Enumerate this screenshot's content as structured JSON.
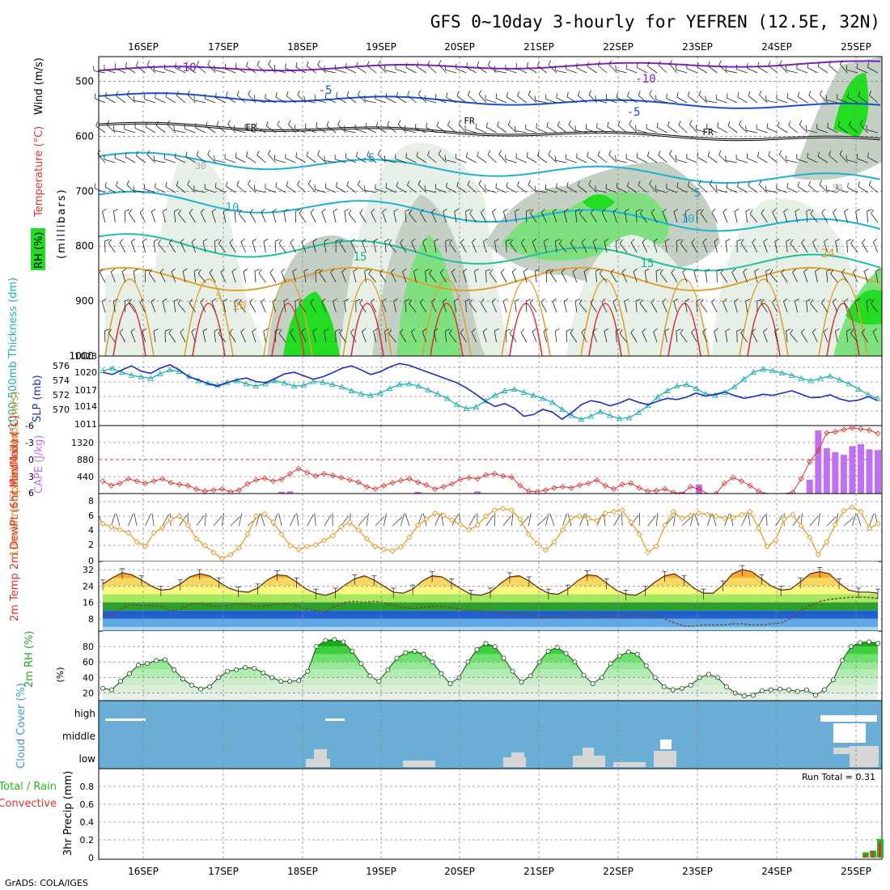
{
  "title": "GFS 0~10day 3-hourly for YEFREN (12.5E, 32N)",
  "credit": "GrADS: COLA/IGES",
  "date_ticks": [
    "16SEP",
    "17SEP",
    "18SEP",
    "19SEP",
    "20SEP",
    "21SEP",
    "22SEP",
    "23SEP",
    "24SEP",
    "25SEP"
  ],
  "colors": {
    "rh_green": "#22dd22",
    "rh_light": "#e6f0e6",
    "rh_grey": "#c4d0c4",
    "temp_orange": "#e0a030",
    "temp_red": "#e03030",
    "iso_blue": "#1a4fd0",
    "iso_cyan": "#1ab0d8",
    "iso_purple": "#8020c0",
    "thickness": "#20b0b0",
    "slp": "#1a30c0",
    "lifted": "#e03030",
    "cape": "#c070f0",
    "wind": "#e09a20",
    "cloud_bg": "#6aaed6"
  },
  "chart_data": [
    {
      "id": "upper",
      "type": "heatmap",
      "ylabel_parts": [
        "RH (%)",
        "Temperature (°C)",
        "Wind (m/s)"
      ],
      "ylabel_units": "(millibars)",
      "y_ticks": [
        "500",
        "600",
        "700",
        "800",
        "900",
        "1000"
      ],
      "isotherm_labels": [
        "-10",
        "-10",
        "-5",
        "-5",
        "FR",
        "FR",
        "FR",
        "-5",
        "5",
        "10",
        "10",
        "15",
        "15",
        "20",
        "24",
        "5",
        "30",
        "30",
        "50"
      ]
    },
    {
      "id": "thickness_slp",
      "type": "line",
      "ylabel_left": "1000-500mb Thickness (dm)",
      "ylabel_right": "SLP (mb)",
      "left_ticks": [
        "576",
        "574",
        "572",
        "570"
      ],
      "right_ticks": [
        "1023",
        "1020",
        "1017",
        "1014",
        "1011"
      ],
      "series": [
        {
          "name": "SLP (mb)",
          "values": [
            1020.2,
            1019.8,
            1020.6,
            1021.3,
            1020.4,
            1020.0,
            1020.9,
            1021.5,
            1020.6,
            1019.4,
            1018.9,
            1018.2,
            1017.8,
            1018.4,
            1018.9,
            1019.2,
            1018.6,
            1018.4,
            1019.1,
            1019.9,
            1020.2,
            1019.6,
            1019.0,
            1019.4,
            1020.1,
            1020.9,
            1021.3,
            1020.6,
            1019.8,
            1020.3,
            1021.1,
            1021.7,
            1021.4,
            1020.8,
            1020.2,
            1019.6,
            1019.0,
            1018.4,
            1017.5,
            1016.4,
            1015.2,
            1014.3,
            1014.8,
            1014.0,
            1012.6,
            1012.9,
            1013.8,
            1013.3,
            1012.1,
            1013.2,
            1014.6,
            1015.3,
            1015.0,
            1014.4,
            1014.9,
            1015.6,
            1015.0,
            1014.6,
            1015.2,
            1015.7,
            1015.5,
            1015.9,
            1016.6,
            1016.1,
            1016.4,
            1016.8,
            1016.2,
            1015.7,
            1016.0,
            1016.4,
            1016.2,
            1016.6,
            1017.0,
            1016.4,
            1015.8,
            1015.9,
            1016.3,
            1015.6,
            1015.2,
            1015.4,
            1016.0,
            1015.3
          ]
        },
        {
          "name": "1000-500mb Thickness (dm)",
          "values": [
            575.6,
            575.9,
            575.4,
            575.0,
            574.8,
            574.6,
            575.2,
            575.7,
            575.5,
            574.9,
            574.3,
            574.0,
            573.7,
            574.1,
            574.3,
            573.9,
            573.6,
            573.9,
            574.3,
            574.0,
            573.6,
            573.7,
            574.2,
            574.1,
            573.8,
            573.5,
            573.0,
            572.6,
            572.4,
            572.7,
            573.3,
            573.8,
            573.9,
            573.6,
            573.1,
            572.6,
            572.0,
            571.2,
            570.7,
            570.9,
            571.7,
            572.4,
            573.0,
            573.2,
            572.8,
            572.4,
            572.0,
            571.5,
            570.6,
            569.8,
            569.3,
            569.7,
            570.3,
            569.8,
            569.4,
            569.5,
            570.2,
            571.1,
            572.2,
            573.0,
            573.6,
            573.8,
            573.3,
            572.6,
            572.4,
            572.8,
            573.5,
            574.5,
            575.4,
            575.8,
            575.6,
            575.3,
            575.0,
            574.6,
            574.3,
            574.6,
            574.9,
            574.4,
            573.9,
            573.2,
            572.5,
            572.0
          ]
        }
      ]
    },
    {
      "id": "lifted_cape",
      "type": "bar",
      "ylabel_left": "Lifted Index",
      "ylabel_right": "CAPE (J/kg)",
      "left_ticks": [
        "-6",
        "-3",
        "0",
        "3",
        "6"
      ],
      "right_ticks": [
        "1320",
        "880",
        "440"
      ],
      "series": [
        {
          "name": "Lifted Index",
          "values": [
            3.8,
            4.6,
            4.2,
            3.4,
            3.8,
            4.2,
            3.8,
            3.4,
            4.1,
            4.4,
            4.6,
            5.2,
            5.6,
            5.4,
            5.2,
            5.7,
            5.4,
            4.3,
            3.6,
            3.3,
            3.8,
            3.5,
            2.5,
            1.6,
            2.3,
            2.9,
            2.5,
            2.8,
            3.2,
            3.6,
            4.0,
            4.8,
            5.2,
            4.6,
            4.1,
            3.7,
            3.4,
            4.0,
            4.5,
            5.2,
            4.8,
            4.3,
            3.5,
            3.2,
            3.4,
            2.7,
            2.5,
            2.9,
            3.1,
            4.6,
            5.6,
            5.7,
            5.4,
            5.0,
            4.8,
            5.0,
            4.5,
            4.2,
            3.6,
            4.6,
            5.2,
            4.4,
            4.2,
            5.0,
            5.6,
            5.5,
            5.2,
            5.8,
            6.3,
            4.8,
            5.2,
            6.2,
            6.0,
            4.2,
            3.2,
            3.8,
            4.6,
            5.6,
            6.2,
            6.2,
            6.4,
            5.8,
            3.4,
            0.4,
            -1.6,
            -4.7,
            -4.9,
            -5.3,
            -5.6,
            -5.4,
            -5.2,
            -4.6
          ]
        },
        {
          "name": "CAPE (J/kg)",
          "values": [
            0,
            0,
            0,
            0,
            0,
            0,
            0,
            0,
            0,
            0,
            0,
            0,
            0,
            0,
            0,
            0,
            0,
            0,
            0,
            0,
            0,
            45,
            55,
            0,
            0,
            0,
            0,
            0,
            0,
            0,
            0,
            0,
            0,
            0,
            0,
            0,
            0,
            45,
            0,
            0,
            0,
            0,
            0,
            0,
            55,
            0,
            0,
            0,
            0,
            0,
            0,
            0,
            0,
            0,
            0,
            0,
            0,
            0,
            0,
            0,
            0,
            0,
            0,
            0,
            0,
            0,
            0,
            0,
            45,
            0,
            230,
            0,
            0,
            0,
            0,
            0,
            0,
            0,
            0,
            0,
            0,
            0,
            0,
            350,
            1600,
            1150,
            1050,
            980,
            1200,
            1250,
            1120,
            1100
          ]
        }
      ]
    },
    {
      "id": "wind10m",
      "type": "line",
      "ylabel": "10m Wind Speed & Barbs (m/s)",
      "y_ticks": [
        "8",
        "6",
        "4",
        "2",
        "0"
      ],
      "series": [
        {
          "name": "10m Wind Speed",
          "values": [
            5.0,
            4.6,
            4.2,
            3.8,
            2.6,
            2.0,
            3.8,
            4.5,
            5.6,
            6.0,
            4.8,
            3.0,
            2.1,
            1.2,
            0.4,
            0.9,
            1.8,
            3.6,
            6.0,
            6.3,
            5.2,
            3.6,
            2.1,
            1.6,
            2.0,
            2.2,
            2.8,
            3.4,
            4.6,
            5.2,
            4.2,
            3.0,
            2.0,
            1.6,
            1.4,
            1.9,
            3.2,
            4.8,
            5.6,
            6.4,
            6.1,
            5.5,
            4.9,
            4.2,
            4.8,
            6.0,
            6.8,
            7.0,
            6.8,
            5.6,
            3.6,
            2.4,
            1.5,
            2.6,
            4.2,
            5.8,
            6.0,
            5.7,
            5.4,
            6.4,
            6.6,
            6.8,
            5.2,
            3.6,
            1.2,
            2.0,
            4.8,
            6.6,
            5.7,
            6.1,
            6.4,
            6.2,
            6.0,
            5.7,
            5.8,
            6.2,
            6.6,
            4.4,
            2.0,
            2.8,
            5.6,
            6.2,
            4.7,
            3.2,
            0.9,
            2.6,
            4.9,
            6.7,
            7.2,
            6.6,
            4.4,
            5.0
          ]
        }
      ]
    },
    {
      "id": "temp2m",
      "type": "area",
      "ylabel": "2m Temp 2m DewPt (6hr Min/Max) (°C)",
      "y_ticks": [
        "32",
        "24",
        "16",
        "8"
      ],
      "series": [
        {
          "name": "2m Temp",
          "values": [
            25.0,
            28.0,
            30.5,
            29.5,
            27.0,
            24.0,
            22.0,
            22.5,
            25.0,
            28.5,
            30.0,
            29.0,
            26.0,
            23.0,
            21.5,
            21.0,
            23.0,
            27.0,
            29.5,
            29.0,
            26.0,
            22.5,
            20.5,
            19.5,
            21.0,
            24.5,
            27.5,
            29.0,
            27.0,
            24.0,
            21.0,
            20.5,
            22.5,
            26.5,
            29.0,
            28.5,
            25.5,
            22.5,
            20.0,
            19.5,
            21.0,
            25.0,
            28.5,
            29.0,
            26.5,
            23.0,
            20.5,
            20.0,
            22.5,
            26.5,
            29.5,
            29.0,
            25.5,
            22.0,
            20.0,
            19.5,
            22.0,
            26.0,
            29.0,
            30.0,
            27.0,
            23.0,
            20.5,
            20.5,
            24.5,
            30.0,
            32.0,
            31.0,
            27.5,
            24.0,
            22.0,
            22.5,
            26.0,
            30.0,
            31.0,
            30.0,
            25.5,
            22.0,
            21.0,
            21.0,
            20.5
          ]
        },
        {
          "name": "2m DewPt",
          "values": [
            10.0,
            9.5,
            13.0,
            15.0,
            14.5,
            14.5,
            14.0,
            12.0,
            12.5,
            15.0,
            15.5,
            14.5,
            14.0,
            14.5,
            15.5,
            15.0,
            14.0,
            14.5,
            15.0,
            15.5,
            14.5,
            13.0,
            12.0,
            11.5,
            14.0,
            16.0,
            16.5,
            16.0,
            16.5,
            16.0,
            14.5,
            13.5,
            13.0,
            13.5,
            14.0,
            14.0,
            13.5,
            12.5,
            12.0,
            12.0,
            11.5,
            11.0,
            10.5,
            10.5,
            10.0,
            9.0,
            8.5,
            9.0,
            9.5,
            10.0,
            10.0,
            9.5,
            9.0,
            9.0,
            9.5,
            10.0,
            10.0,
            9.5,
            8.0,
            6.0,
            4.5,
            4.5,
            5.0,
            5.0,
            5.0,
            5.5,
            5.5,
            5.0,
            5.0,
            5.5,
            6.0,
            8.0,
            12.0,
            14.5,
            16.5,
            17.5,
            18.0,
            18.5,
            18.5,
            18.5,
            18.0
          ]
        }
      ]
    },
    {
      "id": "rh2m",
      "type": "area",
      "ylabel": "2m RH (%)",
      "y_ticks": [
        "80",
        "60",
        "40",
        "20"
      ],
      "series": [
        {
          "name": "2m RH",
          "values": [
            26,
            24,
            35,
            45,
            56,
            58,
            62,
            63,
            50,
            38,
            30,
            25,
            28,
            40,
            48,
            50,
            53,
            52,
            46,
            40,
            35,
            35,
            36,
            48,
            80,
            88,
            89,
            86,
            74,
            58,
            42,
            35,
            50,
            65,
            72,
            74,
            70,
            60,
            45,
            32,
            40,
            60,
            76,
            84,
            80,
            65,
            48,
            34,
            42,
            60,
            74,
            79,
            71,
            60,
            43,
            32,
            40,
            58,
            68,
            73,
            70,
            55,
            40,
            28,
            24,
            26,
            30,
            40,
            44,
            40,
            28,
            20,
            16,
            17,
            23,
            24,
            25,
            24,
            22,
            24,
            17,
            24,
            37,
            62,
            80,
            85,
            86,
            84
          ]
        }
      ]
    },
    {
      "id": "cloud",
      "type": "bar",
      "ylabel": "Cloud Cover (%)",
      "y_ticks": [
        "high",
        "middle",
        "low"
      ]
    },
    {
      "id": "precip",
      "type": "bar",
      "ylabel": "3hr Precip (mm)",
      "ylabel_extra": [
        "Total / Rain",
        "Convective"
      ],
      "y_ticks": [
        "0.8",
        "0.6",
        "0.4",
        "0.2",
        "0"
      ],
      "run_total_label": "Run Total = 0.31",
      "series": [
        {
          "name": "Total / Rain",
          "values": [
            0.06,
            0.08,
            0.21
          ]
        },
        {
          "name": "Convective",
          "values": [
            0.04,
            0.07,
            0.17
          ]
        }
      ]
    }
  ]
}
